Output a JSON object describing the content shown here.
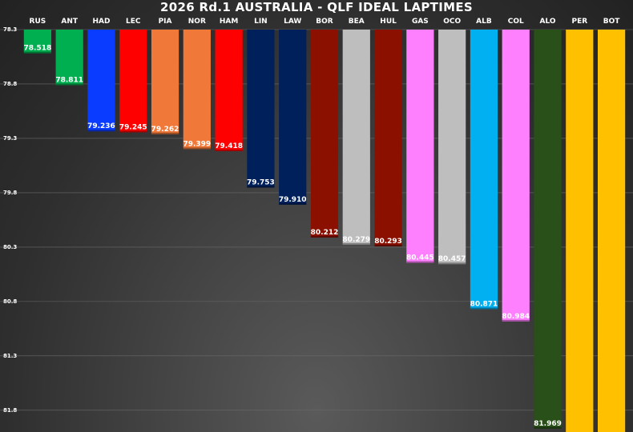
{
  "chart_data": {
    "type": "bar",
    "title": "2026 Rd.1 AUSTRALIA - QLF IDEAL LAPTIMES",
    "categories": [
      "RUS",
      "ANT",
      "HAD",
      "LEC",
      "PIA",
      "NOR",
      "HAM",
      "LIN",
      "LAW",
      "BOR",
      "BEA",
      "HUL",
      "GAS",
      "OCO",
      "ALB",
      "COL",
      "ALO",
      "PER",
      "BOT"
    ],
    "values": [
      78.518,
      78.811,
      79.236,
      79.245,
      79.262,
      79.399,
      79.418,
      79.753,
      79.91,
      80.212,
      80.279,
      80.293,
      80.445,
      80.457,
      80.871,
      80.984,
      81.969,
      null,
      null
    ],
    "value_labels": [
      "78.518",
      "78.811",
      "79.236",
      "79.245",
      "79.262",
      "79.399",
      "79.418",
      "79.753",
      "79.910",
      "80.212",
      "80.279",
      "80.293",
      "80.445",
      "80.457",
      "80.871",
      "80.984",
      "81.969",
      "",
      ""
    ],
    "colors": [
      "#00b050",
      "#00b050",
      "#0a3cff",
      "#ff0000",
      "#f07838",
      "#f07838",
      "#ff0000",
      "#00205b",
      "#00205b",
      "#8b1000",
      "#bebebe",
      "#8b1000",
      "#ff80ff",
      "#bebebe",
      "#00b0f0",
      "#ff80ff",
      "#285018",
      "#ffc000",
      "#ffc000"
    ],
    "y_axis": {
      "min": 78.3,
      "max": 82.0,
      "inverted": true,
      "ticks": [
        78.3,
        78.8,
        79.3,
        79.8,
        80.3,
        80.8,
        81.3,
        81.8
      ],
      "tick_labels": [
        "78.3",
        "78.8",
        "79.3",
        "79.8",
        "80.3",
        "80.8",
        "81.3",
        "81.8"
      ]
    },
    "grid": true,
    "legend": "none"
  }
}
